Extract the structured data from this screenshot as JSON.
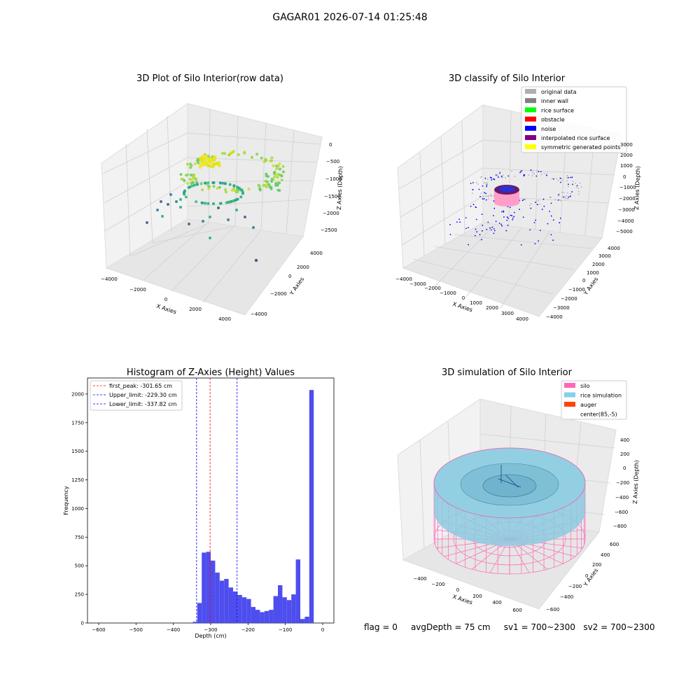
{
  "suptitle": "GAGAR01 2026-07-14 01:25:48",
  "status": {
    "flag": "flag = 0",
    "avg_depth": "avgDepth = 75 cm",
    "sv1": "sv1 = 700~2300",
    "sv2": "sv2 = 700~2300"
  },
  "chart_data": [
    {
      "type": "scatter",
      "title": "3D Plot of Silo Interior(row data)",
      "xlabel": "X Axies",
      "ylabel": "Y Axies",
      "zlabel": "Z Axies (Depth)",
      "x_ticks": [
        "−4000",
        "−2000",
        "0",
        "2000",
        "4000"
      ],
      "y_ticks": [
        "−4000",
        "−2000",
        "0",
        "2000",
        "4000"
      ],
      "z_ticks": [
        "−2500",
        "−2000",
        "−1500",
        "−1000",
        "−500",
        "0"
      ],
      "zlim": [
        -2600,
        0
      ],
      "colormap": "viridis",
      "grid": true
    },
    {
      "type": "scatter",
      "title": "3D classify of Silo Interior",
      "xlabel": "X Axies",
      "ylabel": "Y Axies",
      "zlabel": "Z Axies (Depth)",
      "x_ticks": [
        "−4000",
        "−3000",
        "−2000",
        "−1000",
        "0",
        "1000",
        "2000",
        "3000",
        "4000"
      ],
      "y_ticks": [
        "−4000",
        "−3000",
        "−2000",
        "−1000",
        "0",
        "1000",
        "2000",
        "3000",
        "4000"
      ],
      "z_ticks": [
        "−5000",
        "−4000",
        "−3000",
        "−2000",
        "−1000",
        "0",
        "1000",
        "2000",
        "3000"
      ],
      "legend": [
        {
          "label": "original data",
          "color": "#b0b0b0"
        },
        {
          "label": "inner wall",
          "color": "#808080"
        },
        {
          "label": "rice surface",
          "color": "#00ff00"
        },
        {
          "label": "obstacle",
          "color": "#ff0000"
        },
        {
          "label": "noise",
          "color": "#0000ff"
        },
        {
          "label": "interpolated rice surface",
          "color": "#800080"
        },
        {
          "label": "symmetric generated points",
          "color": "#ffff00"
        }
      ],
      "legend_position": "top-right",
      "grid": true
    },
    {
      "type": "bar",
      "title": "Histogram of Z-Axies (Height) Values",
      "xlabel": "Depth (cm)",
      "ylabel": "Frequency",
      "xlim": [
        -630,
        30
      ],
      "ylim": [
        0,
        2140
      ],
      "x_ticks": [
        -600,
        -500,
        -400,
        -300,
        -200,
        -100,
        0
      ],
      "x_tick_labels": [
        "−600",
        "−500",
        "−400",
        "−300",
        "−200",
        "−100",
        "0"
      ],
      "y_ticks": [
        0,
        250,
        500,
        750,
        1000,
        1250,
        1500,
        1750,
        2000
      ],
      "bar_color": "#4444ee",
      "bin_width": 12,
      "bins": [
        {
          "x": -348,
          "value": 10
        },
        {
          "x": -336,
          "value": 175
        },
        {
          "x": -324,
          "value": 615
        },
        {
          "x": -312,
          "value": 622
        },
        {
          "x": -300,
          "value": 545
        },
        {
          "x": -288,
          "value": 440
        },
        {
          "x": -276,
          "value": 370
        },
        {
          "x": -264,
          "value": 385
        },
        {
          "x": -252,
          "value": 310
        },
        {
          "x": -240,
          "value": 275
        },
        {
          "x": -228,
          "value": 245
        },
        {
          "x": -216,
          "value": 225
        },
        {
          "x": -204,
          "value": 210
        },
        {
          "x": -192,
          "value": 140
        },
        {
          "x": -180,
          "value": 115
        },
        {
          "x": -168,
          "value": 95
        },
        {
          "x": -156,
          "value": 105
        },
        {
          "x": -144,
          "value": 115
        },
        {
          "x": -132,
          "value": 235
        },
        {
          "x": -120,
          "value": 330
        },
        {
          "x": -108,
          "value": 225
        },
        {
          "x": -96,
          "value": 200
        },
        {
          "x": -84,
          "value": 250
        },
        {
          "x": -72,
          "value": 555
        },
        {
          "x": -60,
          "value": 35
        },
        {
          "x": -48,
          "value": 55
        },
        {
          "x": -36,
          "value": 2035
        }
      ],
      "vlines": [
        {
          "label": "first_peak: -301.65 cm",
          "x": -301.65,
          "color": "#ff0000"
        },
        {
          "label": "Upper_limit: -229.30 cm",
          "x": -229.3,
          "color": "#0000ff"
        },
        {
          "label": "Lower_limit: -337.82 cm",
          "x": -337.82,
          "color": "#0000ff"
        }
      ],
      "legend_position": "top-left"
    },
    {
      "type": "scatter",
      "title": "3D simulation of Silo Interior",
      "xlabel": "X Axies",
      "ylabel": "Y Axies",
      "zlabel": "Z Axies (Depth)",
      "x_ticks": [
        "−400",
        "−200",
        "0",
        "200",
        "400",
        "600"
      ],
      "y_ticks": [
        "−600",
        "−400",
        "−200",
        "0",
        "200",
        "400",
        "600"
      ],
      "z_ticks": [
        "−800",
        "−600",
        "−400",
        "−200",
        "0",
        "200",
        "400"
      ],
      "legend": [
        {
          "label": "silo",
          "color": "#ff69b4"
        },
        {
          "label": "rice simulation",
          "color": "#87ceeb"
        },
        {
          "label": "auger",
          "color": "#ff4500"
        },
        {
          "label": "center(85,-5)",
          "color": "#ffffff"
        }
      ],
      "legend_position": "top-right",
      "grid": true
    }
  ]
}
